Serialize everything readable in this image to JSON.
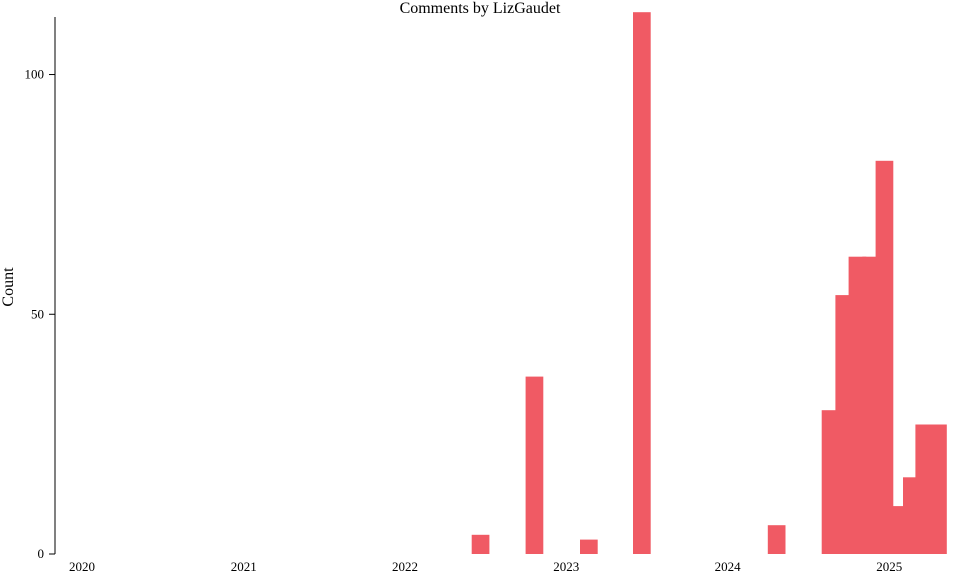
{
  "chart_data": {
    "type": "bar",
    "title": "Comments by LizGaudet",
    "xlabel": "",
    "ylabel": "Count",
    "bar_color": "#f05a64",
    "xlim": [
      "2019-11-01",
      "2025-06-10"
    ],
    "ylim": [
      0,
      112
    ],
    "x_ticks": [
      "2020",
      "2021",
      "2022",
      "2023",
      "2024",
      "2025"
    ],
    "y_ticks": [
      0,
      50,
      100
    ],
    "bars": [
      {
        "start": "2022-06-01",
        "end": "2022-07-11",
        "value": 4
      },
      {
        "start": "2022-10-01",
        "end": "2022-11-10",
        "value": 37
      },
      {
        "start": "2023-02-01",
        "end": "2023-03-13",
        "value": 3
      },
      {
        "start": "2023-06-01",
        "end": "2023-07-11",
        "value": 113
      },
      {
        "start": "2024-04-01",
        "end": "2024-05-11",
        "value": 6
      },
      {
        "start": "2024-08-01",
        "end": "2024-09-10",
        "value": 30
      },
      {
        "start": "2024-09-01",
        "end": "2024-10-11",
        "value": 54
      },
      {
        "start": "2024-10-01",
        "end": "2024-11-10",
        "value": 62
      },
      {
        "start": "2024-11-01",
        "end": "2024-12-11",
        "value": 62
      },
      {
        "start": "2024-12-01",
        "end": "2025-01-10",
        "value": 82
      },
      {
        "start": "2025-01-01",
        "end": "2025-02-10",
        "value": 10
      },
      {
        "start": "2025-02-01",
        "end": "2025-03-13",
        "value": 16
      },
      {
        "start": "2025-03-01",
        "end": "2025-04-10",
        "value": 27
      },
      {
        "start": "2025-04-01",
        "end": "2025-05-11",
        "value": 27
      }
    ]
  }
}
